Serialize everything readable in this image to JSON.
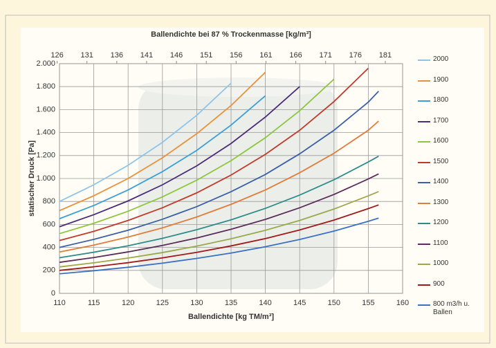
{
  "chart_data": {
    "type": "line",
    "x_label": "Ballendichte [kg TM/m³]",
    "x2_label": "Ballendichte bei 87 % Trockenmasse [kg/m³]",
    "y_label": "statischer Druck [Pa]",
    "x": [
      110,
      115,
      120,
      125,
      130,
      135,
      140,
      145,
      150,
      155,
      156.5
    ],
    "xlim": [
      110,
      160
    ],
    "xticks": [
      110,
      115,
      120,
      125,
      130,
      135,
      140,
      145,
      150,
      155,
      160
    ],
    "x2lim": [
      126.4,
      183.9
    ],
    "x2ticks": [
      126,
      131,
      136,
      141,
      146,
      151,
      156,
      161,
      166,
      171,
      176,
      181
    ],
    "ylim": [
      0,
      2000
    ],
    "yticks": [
      0,
      200,
      400,
      600,
      800,
      {
        "value": 1000,
        "label": "1.000"
      },
      {
        "value": 1200,
        "label": "1.200"
      },
      {
        "value": 1400,
        "label": "1.400"
      },
      {
        "value": 1600,
        "label": "1.600"
      },
      {
        "value": 1800,
        "label": "1.800"
      },
      {
        "value": 2000,
        "label": "2.000"
      }
    ],
    "grid": true,
    "series": [
      {
        "name": "2000",
        "color": "#8ec4ea",
        "values": [
          800,
          945,
          1115,
          1315,
          1550,
          1830,
          null,
          null,
          null,
          null,
          null
        ]
      },
      {
        "name": "1900",
        "color": "#e8903a",
        "values": [
          720,
          850,
          1000,
          1180,
          1390,
          1635,
          1925,
          null,
          null,
          null,
          null
        ]
      },
      {
        "name": "1800",
        "color": "#3a9fd8",
        "values": [
          650,
          765,
          900,
          1060,
          1245,
          1465,
          1720,
          null,
          null,
          null,
          null
        ]
      },
      {
        "name": "1700",
        "color": "#4a2a7a",
        "values": [
          580,
          685,
          805,
          945,
          1110,
          1305,
          1535,
          1800,
          null,
          null,
          null
        ]
      },
      {
        "name": "1600",
        "color": "#8cc63e",
        "values": [
          520,
          610,
          715,
          840,
          985,
          1155,
          1355,
          1590,
          1865,
          null,
          null
        ]
      },
      {
        "name": "1500",
        "color": "#c0392b",
        "values": [
          460,
          540,
          635,
          745,
          875,
          1030,
          1210,
          1420,
          1670,
          1960,
          null
        ]
      },
      {
        "name": "1400",
        "color": "#3a5fa8",
        "values": [
          400,
          470,
          550,
          645,
          755,
          885,
          1035,
          1215,
          1420,
          1665,
          1760
        ]
      },
      {
        "name": "1300",
        "color": "#e07b39",
        "values": [
          360,
          420,
          490,
          570,
          665,
          775,
          900,
          1050,
          1220,
          1420,
          1500
        ]
      },
      {
        "name": "1200",
        "color": "#2e8b8b",
        "values": [
          310,
          358,
          414,
          479,
          554,
          640,
          740,
          856,
          989,
          1144,
          1194
        ]
      },
      {
        "name": "1100",
        "color": "#5a2a5a",
        "values": [
          270,
          312,
          361,
          417,
          482,
          558,
          644,
          745,
          861,
          996,
          1040
        ]
      },
      {
        "name": "1000",
        "color": "#9aa84a",
        "values": [
          230,
          266,
          307,
          355,
          411,
          475,
          549,
          635,
          734,
          849,
          886
        ]
      },
      {
        "name": "900",
        "color": "#a01818",
        "values": [
          200,
          231,
          267,
          309,
          357,
          413,
          477,
          552,
          638,
          738,
          770
        ]
      },
      {
        "name": "800 m3/h u. Ballen",
        "color": "#3a6fc4",
        "values": [
          170,
          197,
          227,
          263,
          304,
          351,
          406,
          469,
          542,
          627,
          655
        ]
      }
    ]
  }
}
